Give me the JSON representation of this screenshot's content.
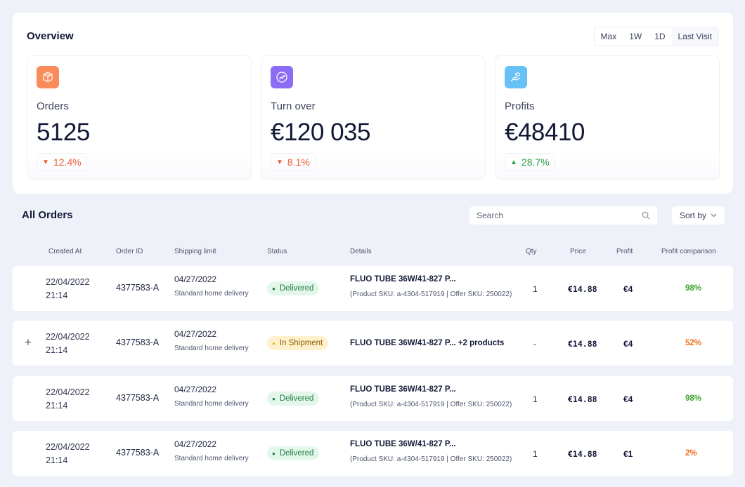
{
  "overview": {
    "title": "Overview",
    "ranges": [
      "Max",
      "1W",
      "1D",
      "Last Visit"
    ],
    "cards": [
      {
        "icon": "package-icon",
        "label": "Orders",
        "value": "5125",
        "delta": "12.4%",
        "trend": "down",
        "color": "#f98c5b"
      },
      {
        "icon": "trend-up-icon",
        "label": "Turn over",
        "value": "€120 035",
        "delta": "8.1%",
        "trend": "down",
        "color": "#8a6cf5"
      },
      {
        "icon": "money-hand-icon",
        "label": "Profits",
        "value": "€48410",
        "delta": "28.7%",
        "trend": "up",
        "color": "#67c1f7"
      }
    ]
  },
  "orders": {
    "title": "All Orders",
    "search_placeholder": "Search",
    "sort_label": "Sort by",
    "columns": [
      "Created At",
      "Order ID",
      "Shipping limit",
      "Status",
      "Details",
      "Qty",
      "Price",
      "Profit",
      "Profit comparison"
    ],
    "rows": [
      {
        "date": "22/04/2022",
        "time": "21:14",
        "order_id": "4377583-A",
        "ship_date": "04/27/2022",
        "ship_method": "Standard home delivery",
        "status": "Delivered",
        "details": "FLUO TUBE 36W/41-827 P...",
        "sku": "(Product SKU: a-4304-517919 | Offer SKU: 250022)",
        "qty": "1",
        "price": "€14.88",
        "profit": "€4",
        "comparison": "98%"
      },
      {
        "date": "22/04/2022",
        "time": "21:14",
        "order_id": "4377583-A",
        "ship_date": "04/27/2022",
        "ship_method": "Standard home delivery",
        "status": "In Shipment",
        "details": "FLUO TUBE 36W/41-827 P... +2 products",
        "sku": "",
        "qty": "-",
        "price": "€14.88",
        "profit": "€4",
        "comparison": "52%"
      },
      {
        "date": "22/04/2022",
        "time": "21:14",
        "order_id": "4377583-A",
        "ship_date": "04/27/2022",
        "ship_method": "Standard home delivery",
        "status": "Delivered",
        "details": "FLUO TUBE 36W/41-827 P...",
        "sku": "(Product SKU: a-4304-517919 | Offer SKU: 250022)",
        "qty": "1",
        "price": "€14.88",
        "profit": "€4",
        "comparison": "98%"
      },
      {
        "date": "22/04/2022",
        "time": "21:14",
        "order_id": "4377583-A",
        "ship_date": "04/27/2022",
        "ship_method": "Standard home delivery",
        "status": "Delivered",
        "details": "FLUO TUBE 36W/41-827 P...",
        "sku": "(Product SKU: a-4304-517919 | Offer SKU: 250022)",
        "qty": "1",
        "price": "€14.88",
        "profit": "€1",
        "comparison": "2%"
      }
    ]
  }
}
